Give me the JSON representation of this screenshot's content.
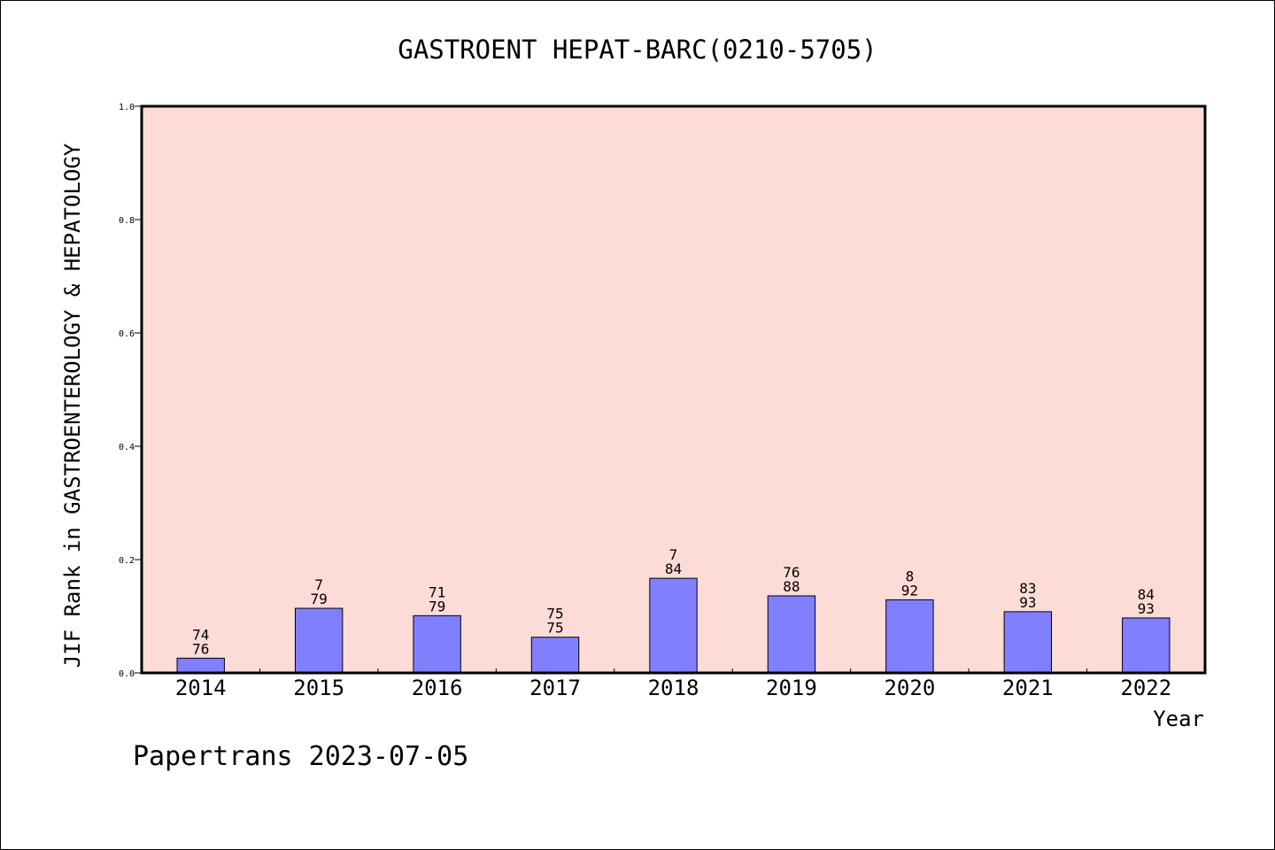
{
  "chart_data": {
    "type": "bar",
    "title": "GASTROENT HEPAT-BARC(0210-5705)",
    "xlabel": "Year",
    "ylabel": "JIF Rank in GASTROENTEROLOGY & HEPATOLOGY",
    "ylim": [
      0,
      1.0
    ],
    "yticks": [
      "0.0",
      "0.2",
      "0.4",
      "0.6",
      "0.8",
      "1.0"
    ],
    "categories": [
      "2014",
      "2015",
      "2016",
      "2017",
      "2018",
      "2019",
      "2020",
      "2021",
      "2022"
    ],
    "values": [
      0.026,
      0.114,
      0.101,
      0.063,
      0.167,
      0.136,
      0.129,
      0.108,
      0.097
    ],
    "labels_top": [
      "74",
      "7",
      "71",
      "75",
      "7",
      "76",
      "8",
      "83",
      "84"
    ],
    "labels_bottom": [
      "76",
      "79",
      "79",
      "75",
      "84",
      "88",
      "92",
      "93",
      "93"
    ],
    "grid": false,
    "colors": {
      "plot_background": "#fddbd7",
      "bar_fill": "#8080ff",
      "bar_stroke": "#000000"
    }
  },
  "footer": {
    "text": "Papertrans 2023-07-05"
  }
}
